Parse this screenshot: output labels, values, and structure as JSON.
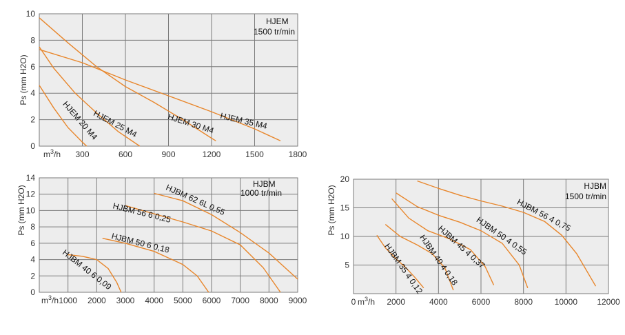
{
  "chart_data": [
    {
      "type": "line",
      "annotation": [
        "HJEM",
        "1500 tr/min"
      ],
      "ylabel": "Ps (mm H2O)",
      "x_unit_label": "m3/h",
      "x_unit_sup": "3",
      "xlim": [
        0,
        1800
      ],
      "ylim": [
        0,
        10
      ],
      "x_ticks": [
        0,
        300,
        600,
        900,
        1200,
        1500,
        1800
      ],
      "x_tick_labels": [
        "",
        "300",
        "600",
        "900",
        "1200",
        "1500",
        "1800"
      ],
      "y_ticks": [
        0,
        2,
        4,
        6,
        8,
        10
      ],
      "y_tick_labels": [
        "0",
        "2",
        "4",
        "6",
        "8",
        "10"
      ],
      "series": [
        {
          "name": "HJEM 20 M4",
          "label_at": [
            270,
            1.8
          ],
          "label_angle": 49,
          "x": [
            0,
            100,
            200,
            300,
            330
          ],
          "y": [
            4.6,
            2.9,
            1.4,
            0.3,
            0.0
          ]
        },
        {
          "name": "HJEM 25 M4",
          "label_at": [
            520,
            1.5
          ],
          "label_angle": 28,
          "x": [
            0,
            100,
            250,
            400,
            550,
            700
          ],
          "y": [
            7.5,
            5.9,
            4.0,
            2.5,
            1.1,
            0.0
          ]
        },
        {
          "name": "HJEM 30 M4",
          "label_at": [
            1050,
            1.5
          ],
          "label_angle": 18,
          "x": [
            0,
            200,
            400,
            600,
            800,
            1000,
            1200,
            1230
          ],
          "y": [
            9.7,
            7.8,
            6.0,
            4.5,
            3.3,
            2.0,
            0.6,
            0.4
          ]
        },
        {
          "name": "HJEM 35 M4",
          "label_at": [
            1420,
            1.7
          ],
          "label_angle": 13,
          "x": [
            0,
            300,
            600,
            900,
            1200,
            1500,
            1680
          ],
          "y": [
            7.3,
            6.3,
            5.0,
            3.8,
            2.6,
            1.3,
            0.4
          ]
        }
      ]
    },
    {
      "type": "line",
      "annotation": [
        "HJBM",
        "1000  tr/min"
      ],
      "ylabel": "Ps (mm H2O)",
      "x_unit_label": "m3/h",
      "x_unit_sup": "3",
      "xlim": [
        0,
        9000
      ],
      "ylim": [
        0,
        14
      ],
      "x_ticks": [
        0,
        1000,
        2000,
        3000,
        4000,
        5000,
        6000,
        7000,
        8000,
        9000
      ],
      "x_tick_labels": [
        "",
        "1000",
        "2000",
        "3000",
        "4000",
        "5000",
        "6000",
        "7000",
        "8000",
        "9000"
      ],
      "y_ticks": [
        0,
        2,
        4,
        6,
        8,
        10,
        12,
        14
      ],
      "y_tick_labels": [
        "0",
        "2",
        "4",
        "6",
        "8",
        "10",
        "12",
        "14"
      ],
      "series": [
        {
          "name": "HJBM 40 6 0,09",
          "label_at": [
            1600,
            2.5
          ],
          "label_angle": 38,
          "x": [
            1000,
            1500,
            2000,
            2400,
            2700,
            2850
          ],
          "y": [
            4.6,
            4.4,
            4.0,
            2.9,
            1.2,
            0.0
          ]
        },
        {
          "name": "HJBM 50 6 0,18",
          "label_at": [
            3500,
            5.7
          ],
          "label_angle": 14,
          "x": [
            2200,
            3000,
            4000,
            5000,
            5500,
            5900
          ],
          "y": [
            6.6,
            6.0,
            5.0,
            3.4,
            2.0,
            0.0
          ]
        },
        {
          "name": "HJBM 56 6 0,25",
          "label_at": [
            3550,
            9.4
          ],
          "label_angle": 14,
          "x": [
            3000,
            4000,
            5000,
            6000,
            7000,
            7800,
            8400
          ],
          "y": [
            10.6,
            9.6,
            8.6,
            7.5,
            5.8,
            3.0,
            0.0
          ]
        },
        {
          "name": "HJBM 62 6L 0,55",
          "label_at": [
            5400,
            11.0
          ],
          "label_angle": 24,
          "x": [
            4000,
            5000,
            6000,
            7000,
            8000,
            9000
          ],
          "y": [
            12.1,
            11.2,
            9.5,
            7.3,
            4.8,
            1.6
          ]
        }
      ]
    },
    {
      "type": "line",
      "annotation": [
        "HJBM",
        "1500  tr/min"
      ],
      "ylabel": "Ps (mm H2O)",
      "x_unit_label": "m3/h",
      "x_unit_sup": "3",
      "xlim": [
        0,
        12000
      ],
      "ylim": [
        0,
        20
      ],
      "x_ticks": [
        0,
        2000,
        4000,
        6000,
        8000,
        10000,
        12000
      ],
      "x_tick_labels": [
        "0",
        "2000",
        "4000",
        "6000",
        "8000",
        "10000",
        "12000"
      ],
      "y_ticks": [
        0,
        5,
        10,
        15,
        20
      ],
      "y_tick_labels": [
        "",
        "5",
        "10",
        "15",
        "20"
      ],
      "series": [
        {
          "name": "HJBM 35 4 0,12",
          "label_at": [
            2250,
            4.1
          ],
          "label_angle": 55,
          "x": [
            1100,
            1500,
            2000,
            2500,
            2900,
            3300
          ],
          "y": [
            10.2,
            8.0,
            6.1,
            4.4,
            2.8,
            1.0
          ]
        },
        {
          "name": "HJBM 40 4 0,18",
          "label_at": [
            3900,
            5.6
          ],
          "label_angle": 55,
          "x": [
            1500,
            2200,
            3000,
            3700,
            4300,
            4700
          ],
          "y": [
            12.1,
            10.0,
            8.5,
            7.0,
            4.5,
            0.6
          ]
        },
        {
          "name": "HJBM 45 4 0,37",
          "label_at": [
            5000,
            7.8
          ],
          "label_angle": 42,
          "x": [
            1800,
            2600,
            3500,
            4500,
            5500,
            6200,
            6600
          ],
          "y": [
            16.6,
            13.2,
            11.0,
            9.6,
            7.7,
            4.7,
            1.5
          ]
        },
        {
          "name": "HJBM 50 4 0,55",
          "label_at": [
            6900,
            9.7
          ],
          "label_angle": 35,
          "x": [
            2000,
            3000,
            4000,
            5000,
            6000,
            7000,
            7800,
            8200
          ],
          "y": [
            17.6,
            15.2,
            13.7,
            12.5,
            11.0,
            8.8,
            5.0,
            1.0
          ]
        },
        {
          "name": "HJBM 56 4 0,75",
          "label_at": [
            8900,
            13.3
          ],
          "label_angle": 28,
          "x": [
            3000,
            4000,
            5000,
            6000,
            7000,
            8000,
            9000,
            9800,
            10500,
            11400
          ],
          "y": [
            19.7,
            18.4,
            17.2,
            16.2,
            15.3,
            14.2,
            12.6,
            10.2,
            7.0,
            1.3
          ]
        }
      ]
    }
  ]
}
